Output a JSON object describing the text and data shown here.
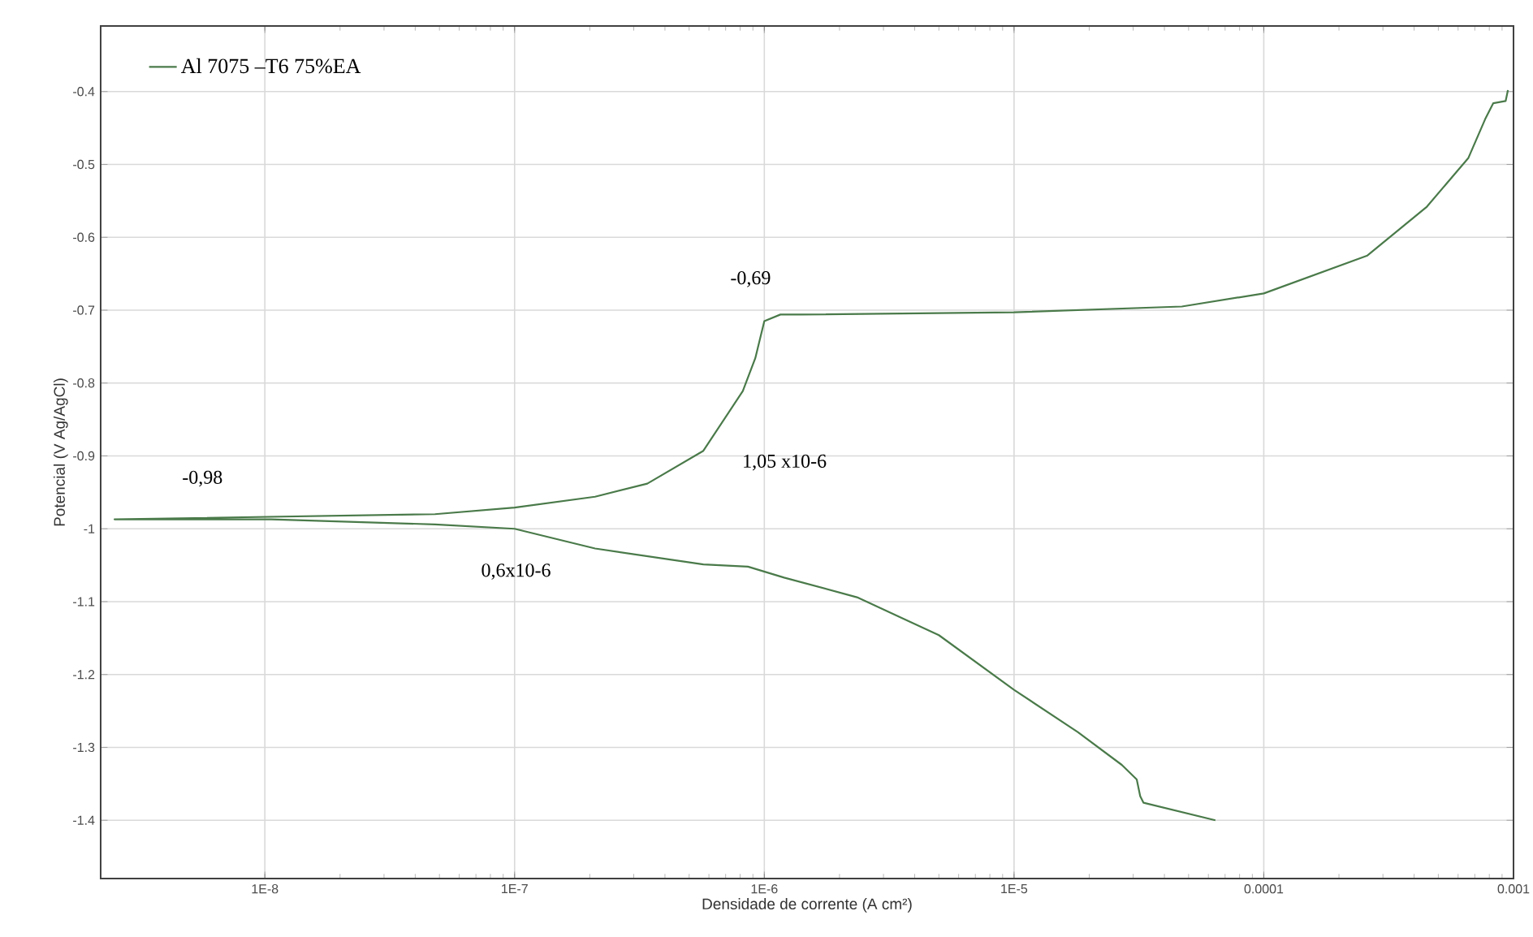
{
  "chart_data": {
    "type": "line",
    "xlabel": "Densidade de corrente (A cm²)",
    "ylabel": "Potencial (V Ag/AgCl)",
    "log": "x",
    "grid": true,
    "legend": "top left",
    "marker": "none",
    "line_style": "solid",
    "xlim": [
      2.2e-09,
      0.001
    ],
    "ylim": [
      -1.48,
      -0.31
    ],
    "xticks": [
      {
        "value": 1e-08,
        "label": "1E-8"
      },
      {
        "value": 1e-07,
        "label": "1E-7"
      },
      {
        "value": 1e-06,
        "label": "1E-6"
      },
      {
        "value": 1e-05,
        "label": "1E-5"
      },
      0.0001,
      0.001
    ],
    "yticks": [
      -0.4,
      -0.5,
      -0.6,
      -0.7,
      -0.8,
      -0.9,
      -1,
      -1.1,
      -1.2,
      -1.3,
      -1.4
    ],
    "series": [
      {
        "name": "Al 7075 –T6 75%EA",
        "color": "#4a7a4a",
        "x": [
          6.4e-05,
          3.3e-05,
          3.2e-05,
          3.1e-05,
          2.7e-05,
          1.8e-05,
          1e-05,
          5e-06,
          2.35e-06,
          1.2e-06,
          8.6e-07,
          5.7e-07,
          2.1e-07,
          1e-07,
          4.8e-08,
          1.06e-08,
          2.5e-09,
          4.8e-08,
          1e-07,
          2.1e-07,
          3.4e-07,
          5.7e-07,
          8.2e-07,
          9.2e-07,
          1e-06,
          1.16e-06,
          1.4e-06,
          1e-05,
          4.7e-05,
          0.0001,
          0.00026,
          0.00045,
          0.00066,
          0.00077,
          0.00083,
          0.00093,
          0.00095
        ],
        "values": [
          -1.4,
          -1.376,
          -1.367,
          -1.344,
          -1.324,
          -1.279,
          -1.221,
          -1.146,
          -1.094,
          -1.067,
          -1.052,
          -1.049,
          -1.027,
          -1.0,
          -0.994,
          -0.987,
          -0.987,
          -0.98,
          -0.971,
          -0.956,
          -0.938,
          -0.893,
          -0.811,
          -0.766,
          -0.715,
          -0.706,
          -0.706,
          -0.703,
          -0.695,
          -0.677,
          -0.625,
          -0.558,
          -0.491,
          -0.438,
          -0.416,
          -0.413,
          -0.398
        ]
      }
    ],
    "annotations": [
      "-0,98",
      "-0,69",
      "1,05 x10-6",
      "0,6x10-6"
    ]
  }
}
